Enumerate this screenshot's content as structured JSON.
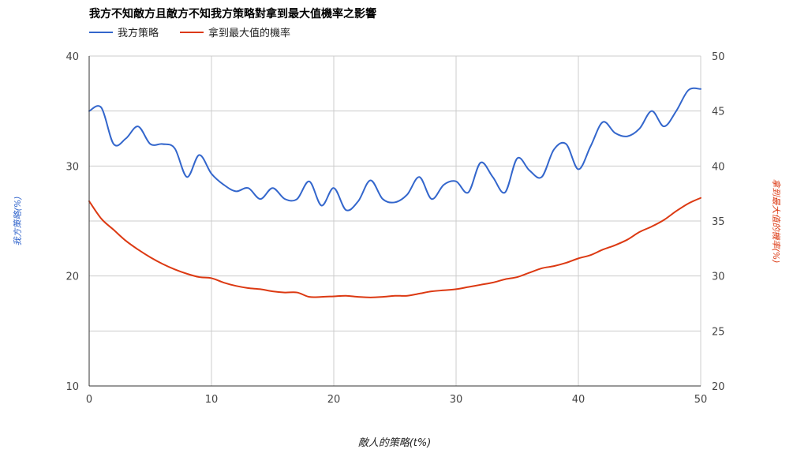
{
  "chart_data": {
    "type": "line",
    "title": "我方不知敵方且敵方不知我方策略對拿到最大值機率之影響",
    "xlabel": "敵人的策略(t%)",
    "ylabel_left": "我方策略(%)",
    "ylabel_right": "拿到最大值的機率(%)",
    "xlim": [
      0,
      50
    ],
    "ylim_left": [
      10,
      40
    ],
    "ylim_right": [
      20,
      50
    ],
    "x_ticks": [
      "0",
      "10",
      "20",
      "30",
      "40",
      "50"
    ],
    "y_ticks_left": [
      "10",
      "20",
      "30",
      "40"
    ],
    "y_ticks_right": [
      "20",
      "25",
      "30",
      "35",
      "40",
      "45",
      "50"
    ],
    "grid": true,
    "legend_position": "top-left",
    "series": [
      {
        "name": "我方策略",
        "axis": "left",
        "color": "#3366cc",
        "x": [
          0,
          1,
          2,
          3,
          4,
          5,
          6,
          7,
          8,
          9,
          10,
          11,
          12,
          13,
          14,
          15,
          16,
          17,
          18,
          19,
          20,
          21,
          22,
          23,
          24,
          25,
          26,
          27,
          28,
          29,
          30,
          31,
          32,
          33,
          34,
          35,
          36,
          37,
          38,
          39,
          40,
          41,
          42,
          43,
          44,
          45,
          46,
          47,
          48,
          49,
          50
        ],
        "values": [
          35,
          35.3,
          32,
          32.5,
          33.6,
          32,
          32,
          31.6,
          29,
          31,
          29.3,
          28.3,
          27.7,
          28,
          27,
          28,
          27,
          27,
          28.6,
          26.4,
          28,
          26,
          26.8,
          28.7,
          27,
          26.7,
          27.4,
          29,
          27,
          28.3,
          28.6,
          27.6,
          30.3,
          29,
          27.6,
          30.7,
          29.6,
          29,
          31.5,
          32,
          29.7,
          31.8,
          34,
          33,
          32.7,
          33.4,
          35,
          33.6,
          35,
          36.9,
          37
        ]
      },
      {
        "name": "拿到最大值的機率",
        "axis": "right",
        "color": "#dc3912",
        "x": [
          0,
          1,
          2,
          3,
          4,
          5,
          6,
          7,
          8,
          9,
          10,
          11,
          12,
          13,
          14,
          15,
          16,
          17,
          18,
          19,
          20,
          21,
          22,
          23,
          24,
          25,
          26,
          27,
          28,
          29,
          30,
          31,
          32,
          33,
          34,
          35,
          36,
          37,
          38,
          39,
          40,
          41,
          42,
          43,
          44,
          45,
          46,
          47,
          48,
          49,
          50
        ],
        "values": [
          36.8,
          35.2,
          34.2,
          33.2,
          32.4,
          31.7,
          31.1,
          30.6,
          30.2,
          29.9,
          29.8,
          29.4,
          29.1,
          28.9,
          28.8,
          28.6,
          28.5,
          28.5,
          28.1,
          28.1,
          28.15,
          28.2,
          28.1,
          28.05,
          28.1,
          28.2,
          28.2,
          28.4,
          28.6,
          28.7,
          28.8,
          29.0,
          29.2,
          29.4,
          29.7,
          29.9,
          30.3,
          30.7,
          30.9,
          31.2,
          31.6,
          31.9,
          32.4,
          32.8,
          33.3,
          34.0,
          34.5,
          35.1,
          35.9,
          36.6,
          37.1
        ]
      }
    ]
  }
}
